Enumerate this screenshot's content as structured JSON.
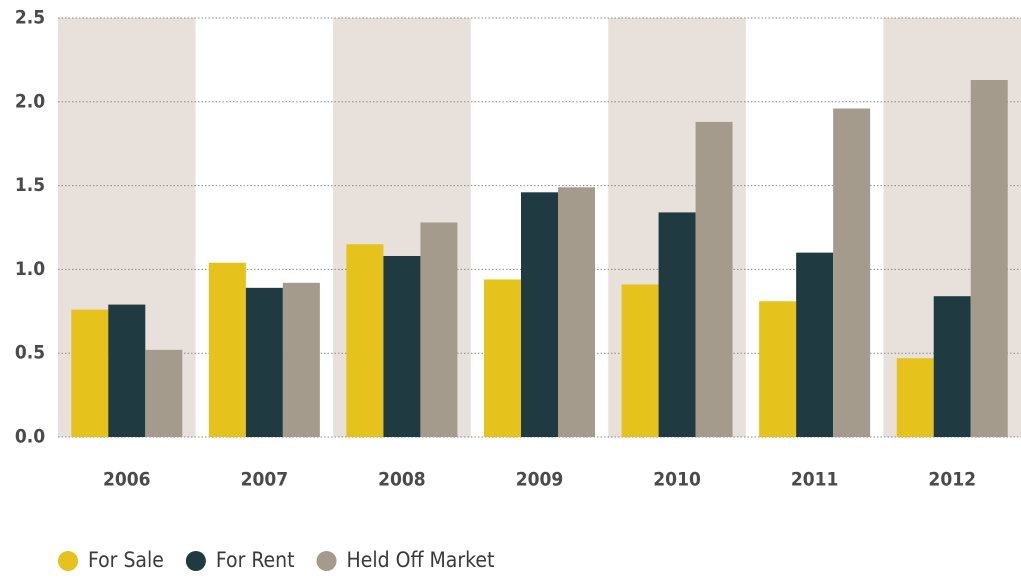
{
  "chart_data": {
    "type": "bar",
    "categories": [
      "2006",
      "2007",
      "2008",
      "2009",
      "2010",
      "2011",
      "2012"
    ],
    "series": [
      {
        "name": "For Sale",
        "color": "#e6c21c",
        "values": [
          0.76,
          1.04,
          1.15,
          0.94,
          0.91,
          0.81,
          0.47
        ]
      },
      {
        "name": "For Rent",
        "color": "#1f3a40",
        "values": [
          0.79,
          0.89,
          1.08,
          1.46,
          1.34,
          1.1,
          0.84
        ]
      },
      {
        "name": "Held Off Market",
        "color": "#a59b8d",
        "values": [
          0.52,
          0.92,
          1.28,
          1.49,
          1.88,
          1.96,
          2.13
        ]
      }
    ],
    "ylim": [
      0,
      2.5
    ],
    "yticks": [
      {
        "value": 0,
        "label": "0.0"
      },
      0.5,
      {
        "value": 1,
        "label": "1.0"
      },
      1.5,
      {
        "value": 2,
        "label": "2.0"
      },
      2.5
    ],
    "grid": true,
    "band_color": "#e8e0da",
    "legend": "bottom-left"
  }
}
